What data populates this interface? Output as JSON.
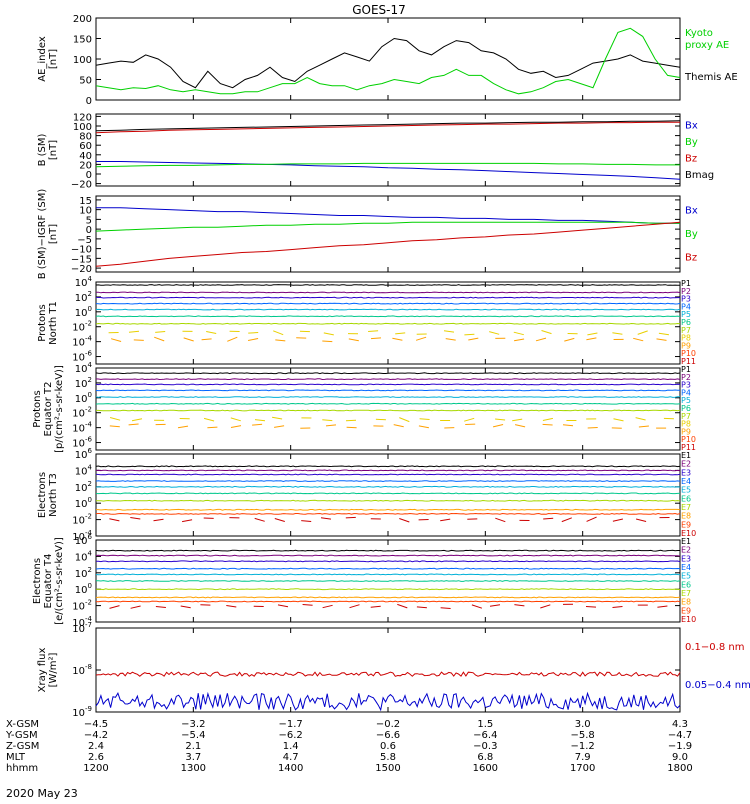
{
  "title": "GOES-17",
  "date_label": "2020 May 23",
  "chart_data": [
    {
      "id": "ae",
      "type": "line",
      "ylabel": [
        "AE_index",
        "[nT]"
      ],
      "ylim": [
        0,
        200
      ],
      "yticks": [
        "0",
        "50",
        "100",
        "150",
        "200"
      ],
      "series": [
        {
          "name": "Themis AE",
          "color": "#000000",
          "values": [
            85,
            90,
            95,
            92,
            110,
            100,
            80,
            45,
            30,
            70,
            40,
            30,
            50,
            60,
            80,
            55,
            45,
            70,
            85,
            100,
            115,
            105,
            95,
            130,
            150,
            145,
            120,
            110,
            130,
            145,
            140,
            120,
            115,
            100,
            75,
            65,
            70,
            55,
            60,
            75,
            90,
            95,
            100,
            110,
            95,
            90,
            85,
            80
          ]
        },
        {
          "name": "Kyoto proxy AE",
          "color": "#00d000",
          "values": [
            35,
            30,
            25,
            30,
            28,
            35,
            25,
            20,
            25,
            20,
            15,
            15,
            20,
            20,
            30,
            40,
            40,
            55,
            40,
            35,
            35,
            25,
            35,
            40,
            50,
            45,
            40,
            55,
            60,
            75,
            60,
            60,
            40,
            25,
            15,
            20,
            30,
            45,
            50,
            40,
            30,
            100,
            165,
            175,
            155,
            100,
            60,
            55
          ]
        }
      ],
      "legend": [
        {
          "label": "Kyoto",
          "color": "#00d000"
        },
        {
          "label": "proxy AE",
          "color": "#00d000"
        },
        {
          "label": "Themis AE",
          "color": "#000000"
        }
      ]
    },
    {
      "id": "bsm",
      "type": "line",
      "ylabel": [
        "B (SM)",
        "[nT]"
      ],
      "ylim": [
        -25,
        125
      ],
      "yticks": [
        "−20",
        "0",
        "20",
        "40",
        "60",
        "80",
        "100",
        "120"
      ],
      "series": [
        {
          "name": "Bx",
          "color": "#0000cc",
          "values": [
            26,
            26,
            25,
            24,
            23,
            22,
            21,
            20,
            19,
            17,
            16,
            15,
            13,
            12,
            10,
            9,
            7,
            5,
            3,
            1,
            -1,
            -3,
            -5,
            -8,
            -11
          ]
        },
        {
          "name": "By",
          "color": "#00d000",
          "values": [
            15,
            16,
            17,
            18,
            18,
            19,
            20,
            20,
            21,
            21,
            21,
            22,
            22,
            22,
            22,
            22,
            22,
            22,
            22,
            21,
            21,
            20,
            20,
            19,
            19
          ]
        },
        {
          "name": "Bz",
          "color": "#cc0000",
          "values": [
            86,
            88,
            89,
            91,
            92,
            93,
            94,
            95,
            96,
            97,
            98,
            99,
            100,
            101,
            102,
            103,
            104,
            104,
            105,
            106,
            106,
            107,
            107,
            108,
            108
          ]
        },
        {
          "name": "Bmag",
          "color": "#000000",
          "values": [
            90,
            91,
            93,
            94,
            95,
            96,
            97,
            98,
            99,
            100,
            101,
            102,
            103,
            104,
            105,
            106,
            106,
            107,
            108,
            108,
            109,
            109,
            110,
            110,
            111
          ]
        }
      ],
      "legend": [
        {
          "label": "Bx",
          "color": "#0000cc"
        },
        {
          "label": "By",
          "color": "#00d000"
        },
        {
          "label": "Bz",
          "color": "#cc0000"
        },
        {
          "label": "Bmag",
          "color": "#000000"
        }
      ]
    },
    {
      "id": "bigrf",
      "type": "line",
      "ylabel": [
        "B (SM)−IGRF (SM)",
        "[nT]"
      ],
      "ylim": [
        -22,
        17
      ],
      "yticks": [
        "−20",
        "−15",
        "−10",
        "−5",
        "0",
        "5",
        "10",
        "15"
      ],
      "series": [
        {
          "name": "Bx",
          "color": "#0000cc",
          "values": [
            11,
            11,
            10.5,
            10,
            9.5,
            9,
            9,
            8.5,
            8,
            7.5,
            7,
            7,
            6.5,
            6,
            6,
            5.5,
            5.5,
            5,
            5,
            4.5,
            4.5,
            4,
            3.5,
            3,
            3
          ]
        },
        {
          "name": "By",
          "color": "#00d000",
          "values": [
            -1,
            -0.5,
            0,
            0.5,
            1,
            1,
            1.5,
            2,
            2,
            2.5,
            2.5,
            3,
            3,
            3.5,
            3.5,
            3.5,
            3.5,
            3.5,
            3.5,
            3.5,
            3.5,
            3.5,
            3.5,
            3,
            3
          ]
        },
        {
          "name": "Bz",
          "color": "#cc0000",
          "values": [
            -19,
            -18,
            -16.5,
            -15,
            -14,
            -13,
            -12,
            -11.5,
            -10.5,
            -9.5,
            -8.5,
            -8,
            -7,
            -6,
            -5.5,
            -4.5,
            -4,
            -3,
            -2.5,
            -1.5,
            -0.5,
            0.5,
            1.5,
            2.5,
            3.5
          ]
        }
      ],
      "legend": [
        {
          "label": "Bx",
          "color": "#0000cc"
        },
        {
          "label": "By",
          "color": "#00d000"
        },
        {
          "label": "Bz",
          "color": "#cc0000"
        }
      ]
    },
    {
      "id": "pn",
      "type": "line",
      "log": true,
      "ylabel": [
        "Protons",
        "North T1"
      ],
      "ylim_exp": [
        -7,
        4
      ],
      "yticks": [
        {
          "e": -6,
          "t": "-6"
        },
        {
          "e": -4,
          "t": "-4"
        },
        {
          "e": -2,
          "t": "-2"
        },
        {
          "e": 0,
          "t": "0"
        },
        {
          "e": 2,
          "t": "2"
        },
        {
          "e": 4,
          "t": "4"
        }
      ],
      "series": [
        {
          "name": "P1",
          "color": "#000000",
          "exp": 3.6
        },
        {
          "name": "P2",
          "color": "#7a007a",
          "exp": 2.6
        },
        {
          "name": "P3",
          "color": "#2a00cc",
          "exp": 1.9
        },
        {
          "name": "P4",
          "color": "#0066ff",
          "exp": 1.1
        },
        {
          "name": "P5",
          "color": "#00b0d8",
          "exp": 0.3
        },
        {
          "name": "P6",
          "color": "#00c88c",
          "exp": -0.6
        },
        {
          "name": "P7",
          "color": "#a8d800",
          "exp": -1.6
        },
        {
          "name": "P8",
          "color": "#e8d000",
          "exp": -2.8,
          "sparse": true
        },
        {
          "name": "P9",
          "color": "#ffa000",
          "exp": -3.7,
          "sparse": true
        },
        {
          "name": "P10",
          "color": "#ff4000",
          "exp": -9
        },
        {
          "name": "P11",
          "color": "#cc0000",
          "exp": -9
        }
      ]
    },
    {
      "id": "pe",
      "type": "line",
      "log": true,
      "ylabel": [
        "Protons",
        "Equator T2",
        "[p/(cm²-s-sr-keV)]"
      ],
      "ylim_exp": [
        -7,
        4
      ],
      "yticks": [
        {
          "e": -6,
          "t": "-6"
        },
        {
          "e": -4,
          "t": "-4"
        },
        {
          "e": -2,
          "t": "-2"
        },
        {
          "e": 0,
          "t": "0"
        },
        {
          "e": 2,
          "t": "2"
        },
        {
          "e": 4,
          "t": "4"
        }
      ],
      "series": [
        {
          "name": "P1",
          "color": "#000000",
          "exp": 3.3
        },
        {
          "name": "P2",
          "color": "#7a007a",
          "exp": 2.5
        },
        {
          "name": "P3",
          "color": "#2a00cc",
          "exp": 1.8
        },
        {
          "name": "P4",
          "color": "#0066ff",
          "exp": 1.0
        },
        {
          "name": "P5",
          "color": "#00b0d8",
          "exp": 0.1
        },
        {
          "name": "P6",
          "color": "#00c88c",
          "exp": -0.8
        },
        {
          "name": "P7",
          "color": "#a8d800",
          "exp": -1.7
        },
        {
          "name": "P8",
          "color": "#e8d000",
          "exp": -2.9,
          "sparse": true
        },
        {
          "name": "P9",
          "color": "#ffa000",
          "exp": -3.8,
          "sparse": true
        },
        {
          "name": "P10",
          "color": "#ff4000",
          "exp": -9
        },
        {
          "name": "P11",
          "color": "#cc0000",
          "exp": -9
        }
      ]
    },
    {
      "id": "en",
      "type": "line",
      "log": true,
      "ylabel": [
        "Electrons",
        "North T3"
      ],
      "ylim_exp": [
        -4,
        6
      ],
      "yticks": [
        {
          "e": -4,
          "t": "-4"
        },
        {
          "e": -2,
          "t": "-2"
        },
        {
          "e": 0,
          "t": "0"
        },
        {
          "e": 2,
          "t": "2"
        },
        {
          "e": 4,
          "t": "4"
        },
        {
          "e": 6,
          "t": "6"
        }
      ],
      "series": [
        {
          "name": "E1",
          "color": "#000000",
          "exp": 4.5
        },
        {
          "name": "E2",
          "color": "#7a007a",
          "exp": 4.0
        },
        {
          "name": "E3",
          "color": "#2a00cc",
          "exp": 3.5
        },
        {
          "name": "E4",
          "color": "#0066ff",
          "exp": 2.7
        },
        {
          "name": "E5",
          "color": "#00b0d8",
          "exp": 2.0
        },
        {
          "name": "E6",
          "color": "#00c88c",
          "exp": 1.2
        },
        {
          "name": "E7",
          "color": "#a8d800",
          "exp": 0.3
        },
        {
          "name": "E8",
          "color": "#ffa000",
          "exp": -0.8
        },
        {
          "name": "E9",
          "color": "#ff4000",
          "exp": -1.3
        },
        {
          "name": "E10",
          "color": "#cc0000",
          "exp": -2.0,
          "sparse": true
        }
      ]
    },
    {
      "id": "ee",
      "type": "line",
      "log": true,
      "ylabel": [
        "Electrons",
        "Equator T4",
        "[e/(cm²-s-sr-keV)]"
      ],
      "ylim_exp": [
        -4,
        6
      ],
      "yticks": [
        {
          "e": -4,
          "t": "-4"
        },
        {
          "e": -2,
          "t": "-2"
        },
        {
          "e": 0,
          "t": "0"
        },
        {
          "e": 2,
          "t": "2"
        },
        {
          "e": 4,
          "t": "4"
        },
        {
          "e": 6,
          "t": "6"
        }
      ],
      "series": [
        {
          "name": "E1",
          "color": "#000000",
          "exp": 4.7
        },
        {
          "name": "E2",
          "color": "#7a007a",
          "exp": 4.1
        },
        {
          "name": "E3",
          "color": "#2a00cc",
          "exp": 3.4
        },
        {
          "name": "E4",
          "color": "#0066ff",
          "exp": 2.5
        },
        {
          "name": "E5",
          "color": "#00b0d8",
          "exp": 1.8
        },
        {
          "name": "E6",
          "color": "#00c88c",
          "exp": 1.0
        },
        {
          "name": "E7",
          "color": "#a8d800",
          "exp": 0.0
        },
        {
          "name": "E8",
          "color": "#ffa000",
          "exp": -1.0
        },
        {
          "name": "E9",
          "color": "#ff4000",
          "exp": -1.5
        },
        {
          "name": "E10",
          "color": "#cc0000",
          "exp": -2.1,
          "sparse": true
        }
      ]
    },
    {
      "id": "xray",
      "type": "line",
      "log": true,
      "ylabel": [
        "Xray flux",
        "[W/m²]"
      ],
      "ylim_exp": [
        -9,
        -7
      ],
      "yticks": [
        {
          "e": -9,
          "t": "-9"
        },
        {
          "e": -8,
          "t": "-8"
        },
        {
          "e": -7,
          "t": "-7"
        }
      ],
      "series": [
        {
          "name": "0.1−0.8 nm",
          "color": "#cc0000",
          "exp": -8.1,
          "noise": 0.05
        },
        {
          "name": "0.05−0.4 nm",
          "color": "#0000cc",
          "exp": -8.75,
          "noise": 0.2
        }
      ],
      "legend": [
        {
          "label": "0.1−0.8 nm",
          "color": "#cc0000"
        },
        {
          "label": "0.05−0.4 nm",
          "color": "#0000cc"
        }
      ]
    }
  ],
  "x_axis": {
    "row_labels": [
      "X-GSM",
      "Y-GSM",
      "Z-GSM",
      "MLT",
      "hhmm"
    ],
    "columns": [
      {
        "x-gsm": "−4.5",
        "y-gsm": "−4.2",
        "z-gsm": "2.4",
        "mlt": "2.6",
        "hhmm": "1200"
      },
      {
        "x-gsm": "−3.2",
        "y-gsm": "−5.4",
        "z-gsm": "2.1",
        "mlt": "3.7",
        "hhmm": "1300"
      },
      {
        "x-gsm": "−1.7",
        "y-gsm": "−6.2",
        "z-gsm": "1.4",
        "mlt": "4.7",
        "hhmm": "1400"
      },
      {
        "x-gsm": "−0.2",
        "y-gsm": "−6.6",
        "z-gsm": "0.6",
        "mlt": "5.8",
        "hhmm": "1500"
      },
      {
        "x-gsm": "1.5",
        "y-gsm": "−6.4",
        "z-gsm": "−0.3",
        "mlt": "6.8",
        "hhmm": "1600"
      },
      {
        "x-gsm": "3.0",
        "y-gsm": "−5.8",
        "z-gsm": "−1.2",
        "mlt": "7.9",
        "hhmm": "1700"
      },
      {
        "x-gsm": "4.3",
        "y-gsm": "−4.7",
        "z-gsm": "−1.9",
        "mlt": "9.0",
        "hhmm": "1800"
      }
    ]
  }
}
